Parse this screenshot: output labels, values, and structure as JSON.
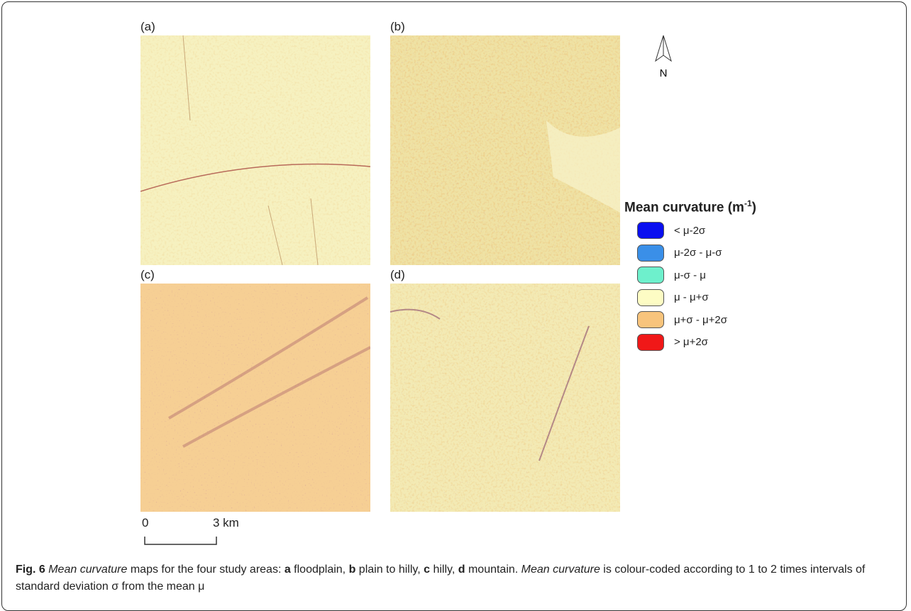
{
  "figure": {
    "panels": [
      {
        "label": "(a)"
      },
      {
        "label": "(b)"
      },
      {
        "label": "(c)"
      },
      {
        "label": "(d)"
      }
    ],
    "north_arrow": "N",
    "legend": {
      "title": "Mean curvature (m",
      "title_sup": "-1",
      "title_end": ")",
      "items": [
        {
          "label": "< μ-2σ",
          "color": "#0a0ff0"
        },
        {
          "label": "μ-2σ - μ-σ",
          "color": "#3a8fe8"
        },
        {
          "label": "μ-σ - μ",
          "color": "#6ef0cc"
        },
        {
          "label": "μ - μ+σ",
          "color": "#fdfcc4"
        },
        {
          "label": "μ+σ - μ+2σ",
          "color": "#f8c47c"
        },
        {
          "label": "> μ+2σ",
          "color": "#f01818"
        }
      ]
    },
    "scale_bar": {
      "start": "0",
      "end": "3 km"
    }
  },
  "caption": {
    "segments": [
      "Fig. 6",
      " Mean curvature",
      " maps for the four study areas: ",
      "a",
      " floodplain, ",
      "b",
      " plain to hilly, ",
      "c",
      " hilly, ",
      "d",
      " mountain. ",
      "Mean curvature",
      " is colour-coded according to 1 to 2 times intervals of standard deviation σ from the mean μ"
    ]
  }
}
